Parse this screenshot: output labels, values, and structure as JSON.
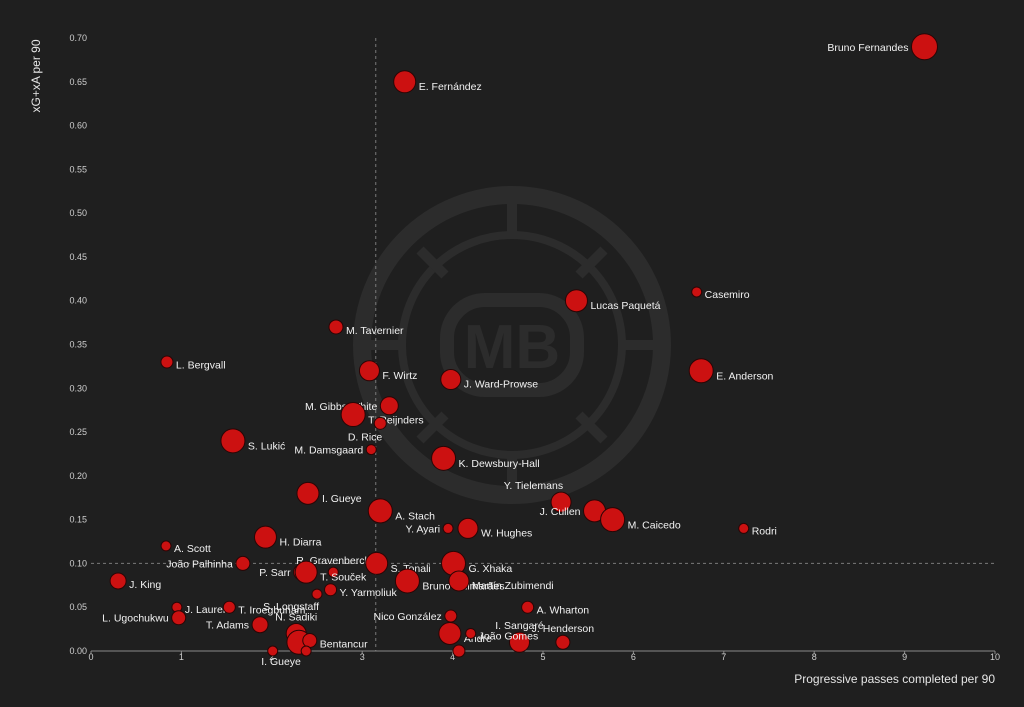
{
  "chart_data": {
    "type": "scatter",
    "xlabel": "Progressive passes completed per 90",
    "ylabel": "xG+xA per 90",
    "xlim": [
      0,
      10
    ],
    "ylim": [
      0,
      0.7
    ],
    "x_ticks": [
      "0",
      "1",
      "2",
      "3",
      "4",
      "5",
      "6",
      "7",
      "8",
      "9",
      "10"
    ],
    "y_ticks": [
      "0.00",
      "0.05",
      "0.10",
      "0.15",
      "0.20",
      "0.25",
      "0.30",
      "0.35",
      "0.40",
      "0.45",
      "0.50",
      "0.55",
      "0.60",
      "0.65",
      "0.70"
    ],
    "reference_lines": {
      "x": 3.15,
      "y": 0.1
    },
    "grid": false,
    "watermark_text": "MB",
    "colors": {
      "background": "#1f1f1f",
      "point_fill": "#cc1111",
      "point_stroke": "#2a0505",
      "text": "#f2f2f2"
    },
    "points": [
      {
        "name": "Bruno Fernandes",
        "x": 9.22,
        "y": 0.69,
        "size": 13,
        "label_side": "left"
      },
      {
        "name": "E. Fernández",
        "x": 3.47,
        "y": 0.65,
        "size": 11,
        "label_side": "right"
      },
      {
        "name": "Lucas Paquetá",
        "x": 5.37,
        "y": 0.4,
        "size": 11,
        "label_side": "right"
      },
      {
        "name": "Casemiro",
        "x": 6.7,
        "y": 0.41,
        "size": 5,
        "label_side": "right"
      },
      {
        "name": "M. Tavernier",
        "x": 2.71,
        "y": 0.37,
        "size": 7,
        "label_side": "right"
      },
      {
        "name": "L. Bergvall",
        "x": 0.84,
        "y": 0.33,
        "size": 6,
        "label_side": "right"
      },
      {
        "name": "F. Wirtz",
        "x": 3.08,
        "y": 0.32,
        "size": 10,
        "label_side": "right"
      },
      {
        "name": "J. Ward-Prowse",
        "x": 3.98,
        "y": 0.31,
        "size": 10,
        "label_side": "right"
      },
      {
        "name": "E. Anderson",
        "x": 6.75,
        "y": 0.32,
        "size": 12,
        "label_side": "right"
      },
      {
        "name": "M. Gibbs-White",
        "x": 3.3,
        "y": 0.28,
        "size": 9,
        "label_side": "left"
      },
      {
        "name": "T. Reijnders",
        "x": 2.9,
        "y": 0.27,
        "size": 12,
        "label_side": "right"
      },
      {
        "name": "D. Rice",
        "x": 3.2,
        "y": 0.26,
        "size": 6,
        "label_side": "below-left"
      },
      {
        "name": "S. Lukić",
        "x": 1.57,
        "y": 0.24,
        "size": 12,
        "label_side": "right"
      },
      {
        "name": "M. Damsgaard",
        "x": 3.1,
        "y": 0.23,
        "size": 5,
        "label_side": "left"
      },
      {
        "name": "K. Dewsbury-Hall",
        "x": 3.9,
        "y": 0.22,
        "size": 12,
        "label_side": "right"
      },
      {
        "name": "I. Gueye",
        "x": 2.4,
        "y": 0.18,
        "size": 11,
        "label_side": "right"
      },
      {
        "name": "Y. Tielemans",
        "x": 5.2,
        "y": 0.17,
        "size": 10,
        "label_side": "above-left"
      },
      {
        "name": "J. Cullen",
        "x": 5.57,
        "y": 0.16,
        "size": 11,
        "label_side": "left"
      },
      {
        "name": "A. Stach",
        "x": 3.2,
        "y": 0.16,
        "size": 12,
        "label_side": "right"
      },
      {
        "name": "M. Caicedo",
        "x": 5.77,
        "y": 0.15,
        "size": 12,
        "label_side": "right"
      },
      {
        "name": "Rodri",
        "x": 7.22,
        "y": 0.14,
        "size": 5,
        "label_side": "right"
      },
      {
        "name": "Y. Ayari",
        "x": 3.95,
        "y": 0.14,
        "size": 5,
        "label_side": "left"
      },
      {
        "name": "W. Hughes",
        "x": 4.17,
        "y": 0.14,
        "size": 10,
        "label_side": "right"
      },
      {
        "name": "H. Diarra",
        "x": 1.93,
        "y": 0.13,
        "size": 11,
        "label_side": "right"
      },
      {
        "name": "A. Scott",
        "x": 0.83,
        "y": 0.12,
        "size": 5,
        "label_side": "right"
      },
      {
        "name": "R. Gravenberch",
        "x": 2.68,
        "y": 0.09,
        "size": 5,
        "label_side": "above"
      },
      {
        "name": "João Palhinha",
        "x": 1.68,
        "y": 0.1,
        "size": 7,
        "label_side": "left"
      },
      {
        "name": "S. Tonali",
        "x": 3.16,
        "y": 0.1,
        "size": 11,
        "label_side": "right"
      },
      {
        "name": "G. Xhaka",
        "x": 4.01,
        "y": 0.1,
        "size": 12,
        "label_side": "right"
      },
      {
        "name": "P. Sarr",
        "x": 2.33,
        "y": 0.09,
        "size": 8,
        "label_side": "left"
      },
      {
        "name": "T. Souček",
        "x": 2.38,
        "y": 0.09,
        "size": 11,
        "label_side": "right"
      },
      {
        "name": "J. King",
        "x": 0.3,
        "y": 0.08,
        "size": 8,
        "label_side": "right"
      },
      {
        "name": "Y. Yarmoliuk",
        "x": 2.65,
        "y": 0.07,
        "size": 6,
        "label_side": "right"
      },
      {
        "name": "Bruno Guimarães",
        "x": 3.5,
        "y": 0.08,
        "size": 12,
        "label_side": "right"
      },
      {
        "name": "Martín Zubimendi",
        "x": 4.07,
        "y": 0.08,
        "size": 10,
        "label_side": "right"
      },
      {
        "name": "S. Longstaff",
        "x": 2.5,
        "y": 0.065,
        "size": 5,
        "label_side": "below-left"
      },
      {
        "name": "J. Laurent",
        "x": 0.95,
        "y": 0.05,
        "size": 5,
        "label_side": "right"
      },
      {
        "name": "T. Iroegbunam",
        "x": 1.53,
        "y": 0.05,
        "size": 6,
        "label_side": "right"
      },
      {
        "name": "A. Wharton",
        "x": 4.83,
        "y": 0.05,
        "size": 6,
        "label_side": "right"
      },
      {
        "name": "L. Ugochukwu",
        "x": 0.97,
        "y": 0.038,
        "size": 7,
        "label_side": "left"
      },
      {
        "name": "Nico González",
        "x": 3.98,
        "y": 0.04,
        "size": 6,
        "label_side": "left"
      },
      {
        "name": "T. Adams",
        "x": 1.87,
        "y": 0.03,
        "size": 8,
        "label_side": "left"
      },
      {
        "name": "N. Sadiki",
        "x": 2.27,
        "y": 0.02,
        "size": 10,
        "label_side": "above"
      },
      {
        "name": "I. Sangaré",
        "x": 4.74,
        "y": 0.01,
        "size": 10,
        "label_side": "above"
      },
      {
        "name": "J. Henderson",
        "x": 5.22,
        "y": 0.01,
        "size": 7,
        "label_side": "above"
      },
      {
        "name": "Andre",
        "x": 3.97,
        "y": 0.02,
        "size": 11,
        "label_side": "right"
      },
      {
        "name": "João Gomes",
        "x": 4.2,
        "y": 0.02,
        "size": 5,
        "label_side": "right"
      },
      {
        "name": "I. Gueye",
        "x": 2.3,
        "y": 0.01,
        "size": 12,
        "label_side": "below-left"
      },
      {
        "name": "Bentancur",
        "x": 2.42,
        "y": 0.012,
        "size": 7,
        "label_side": "right"
      },
      {
        "name": "",
        "x": 2.01,
        "y": 0.0,
        "size": 5,
        "label_side": "none"
      },
      {
        "name": "",
        "x": 2.38,
        "y": 0.0,
        "size": 5,
        "label_side": "none"
      },
      {
        "name": "",
        "x": 4.07,
        "y": 0.0,
        "size": 6,
        "label_side": "none"
      }
    ]
  }
}
